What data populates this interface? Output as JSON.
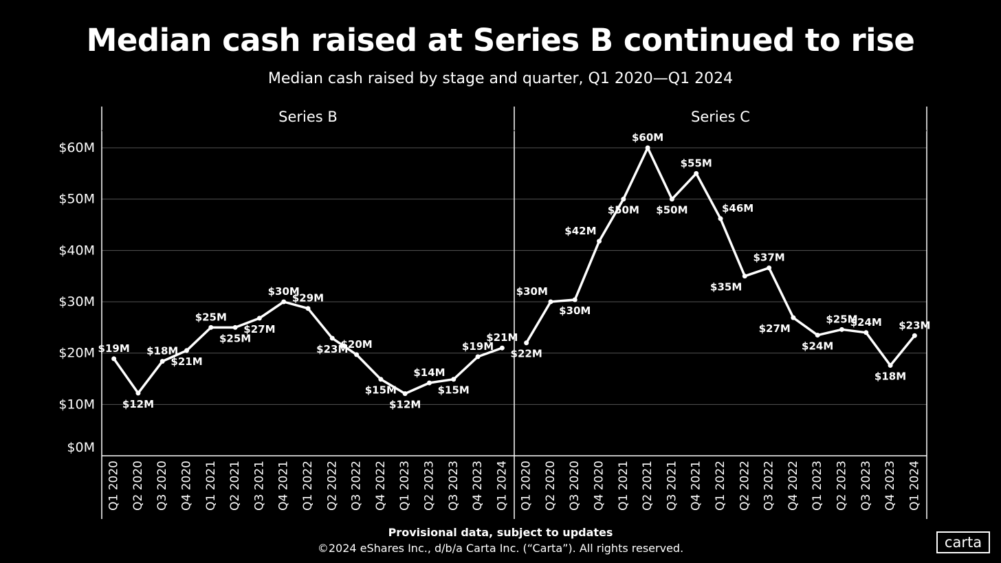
{
  "header": {
    "title": "Median cash raised at Series B continued to rise",
    "subtitle": "Median cash raised by stage and quarter, Q1 2020—Q1 2024"
  },
  "footer": {
    "note": "Provisional data, subject to updates",
    "copyright": "©2024 eShares Inc., d/b/a Carta Inc. (“Carta”). All rights reserved."
  },
  "logo": {
    "text": "carta"
  },
  "colors": {
    "background": "#000000",
    "line": "#ffffff",
    "grid": "#555555"
  },
  "chart_data": {
    "type": "line",
    "title": "Median cash raised by stage and quarter, Q1 2020—Q1 2024",
    "y_ticks": [
      0,
      10,
      20,
      30,
      40,
      50,
      60
    ],
    "y_tick_labels": [
      "$0M",
      "$10M",
      "$20M",
      "$30M",
      "$40M",
      "$50M",
      "$60M"
    ],
    "ylim": [
      0,
      60
    ],
    "grid": true,
    "categories": [
      "Q1 2020",
      "Q2 2020",
      "Q3 2020",
      "Q4 2020",
      "Q1 2021",
      "Q2 2021",
      "Q3 2021",
      "Q4 2021",
      "Q1 2022",
      "Q2 2022",
      "Q3 2022",
      "Q4 2022",
      "Q1 2023",
      "Q2 2023",
      "Q3 2023",
      "Q4 2023",
      "Q1 2024"
    ],
    "panels": [
      {
        "name": "Series B",
        "values": [
          18.9,
          12.2,
          18.4,
          20.5,
          25.0,
          25.0,
          26.8,
          30.0,
          28.7,
          22.9,
          19.7,
          14.9,
          12.1,
          14.2,
          14.9,
          19.3,
          21.0
        ],
        "labels": [
          "$19M",
          "$12M",
          "$18M",
          "$21M",
          "$25M",
          "$25M",
          "$27M",
          "$30M",
          "$29M",
          "$23M",
          "$20M",
          "$15M",
          "$12M",
          "$14M",
          "$15M",
          "$19M",
          "$21M"
        ],
        "label_pos": [
          "above",
          "below",
          "above",
          "below",
          "above",
          "below",
          "below",
          "above",
          "above",
          "below",
          "above",
          "below",
          "below",
          "above",
          "below",
          "above",
          "above"
        ]
      },
      {
        "name": "Series C",
        "values": [
          22.0,
          30.0,
          30.4,
          41.8,
          50.0,
          60.0,
          50.0,
          55.0,
          46.2,
          35.0,
          36.6,
          26.9,
          23.5,
          24.6,
          24.0,
          17.6,
          23.4
        ],
        "labels": [
          "$22M",
          "$30M",
          "$30M",
          "$42M",
          "$50M",
          "$60M",
          "$50M",
          "$55M",
          "$46M",
          "$35M",
          "$37M",
          "$27M",
          "$24M",
          "$25M",
          "$24M",
          "$18M",
          "$23M"
        ],
        "label_pos": [
          "below",
          "above-left",
          "below",
          "above-left",
          "below",
          "above",
          "below",
          "above",
          "above-right",
          "below-left",
          "above",
          "below-left",
          "below",
          "above",
          "above",
          "below",
          "above"
        ]
      }
    ]
  }
}
